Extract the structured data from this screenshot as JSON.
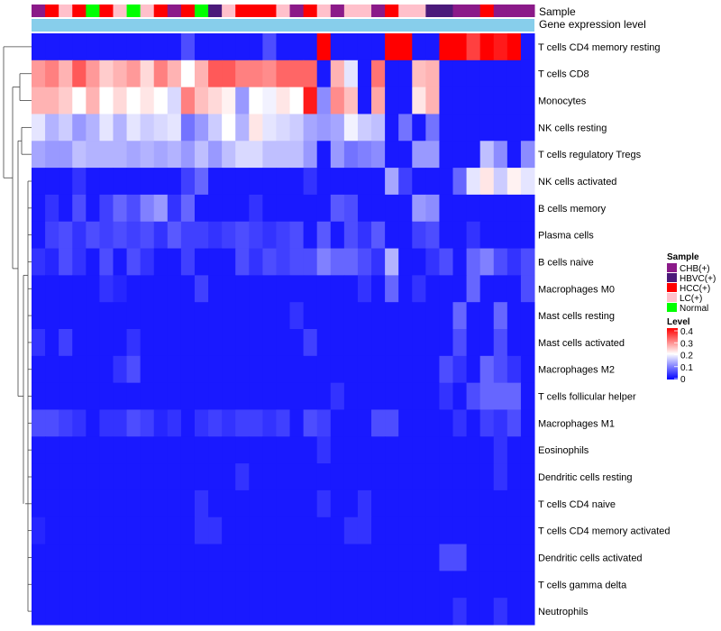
{
  "chart_data": {
    "type": "heatmap",
    "annotation_tracks": [
      "Sample",
      "Gene expression level"
    ],
    "row_labels": [
      "T cells CD4 memory resting",
      "T cells CD8",
      "Monocytes",
      "NK cells resting",
      "T cells regulatory  Tregs",
      "NK cells activated",
      "B cells memory",
      "Plasma cells",
      "B cells naive",
      "Macrophages M0",
      "Mast cells resting",
      "Mast cells activated",
      "Macrophages M2",
      "T cells follicular helper",
      "Macrophages M1",
      "Eosinophils",
      "Dendritic cells resting",
      "T cells CD4 naive",
      "T cells CD4 memory activated",
      "Dendritic cells activated",
      "T cells gamma delta",
      "Neutrophils"
    ],
    "sample_annotation": [
      "CHB(+)",
      "HCC(+)",
      "LC(+)",
      "HCC(+)",
      "Normal",
      "HCC(+)",
      "LC(+)",
      "Normal",
      "LC(+)",
      "HCC(+)",
      "CHB(+)",
      "HCC(+)",
      "Normal",
      "HBVC(+)",
      "LC(+)",
      "HCC(+)",
      "HCC(+)",
      "HCC(+)",
      "LC(+)",
      "CHB(+)",
      "HCC(+)",
      "LC(+)",
      "CHB(+)",
      "LC(+)",
      "LC(+)",
      "CHB(+)",
      "HCC(+)",
      "LC(+)",
      "LC(+)",
      "HBVC(+)",
      "HBVC(+)",
      "CHB(+)",
      "CHB(+)",
      "HCC(+)",
      "CHB(+)",
      "CHB(+)",
      "CHB(+)"
    ],
    "expression_values": [
      [
        0.02,
        0.02,
        0.02,
        0.02,
        0.02,
        0.02,
        0.02,
        0.02,
        0.02,
        0.02,
        0.02,
        0.06,
        0.02,
        0.02,
        0.02,
        0.02,
        0.02,
        0.06,
        0.02,
        0.02,
        0.02,
        0.4,
        0.02,
        0.02,
        0.02,
        0.02,
        0.4,
        0.4,
        0.02,
        0.02,
        0.4,
        0.4,
        0.35,
        0.4,
        0.38,
        0.4,
        0.02
      ],
      [
        0.28,
        0.3,
        0.26,
        0.33,
        0.28,
        0.24,
        0.26,
        0.28,
        0.23,
        0.3,
        0.26,
        0.2,
        0.26,
        0.33,
        0.33,
        0.3,
        0.3,
        0.29,
        0.32,
        0.32,
        0.32,
        0.02,
        0.26,
        0.18,
        0.02,
        0.31,
        0.02,
        0.02,
        0.25,
        0.26,
        0.02,
        0.02,
        0.02,
        0.02,
        0.02,
        0.02,
        0.02
      ],
      [
        0.26,
        0.26,
        0.24,
        0.2,
        0.26,
        0.2,
        0.23,
        0.2,
        0.22,
        0.2,
        0.17,
        0.3,
        0.25,
        0.23,
        0.21,
        0.12,
        0.2,
        0.19,
        0.22,
        0.2,
        0.38,
        0.11,
        0.29,
        0.25,
        0.02,
        0.27,
        0.02,
        0.02,
        0.22,
        0.26,
        0.02,
        0.02,
        0.02,
        0.02,
        0.02,
        0.02,
        0.02
      ],
      [
        0.18,
        0.14,
        0.16,
        0.12,
        0.14,
        0.18,
        0.14,
        0.18,
        0.16,
        0.17,
        0.18,
        0.09,
        0.12,
        0.16,
        0.2,
        0.14,
        0.22,
        0.18,
        0.17,
        0.16,
        0.13,
        0.12,
        0.13,
        0.19,
        0.16,
        0.15,
        0.02,
        0.09,
        0.02,
        0.09,
        0.02,
        0.02,
        0.02,
        0.02,
        0.02,
        0.02,
        0.02
      ],
      [
        0.13,
        0.12,
        0.12,
        0.15,
        0.14,
        0.14,
        0.14,
        0.13,
        0.14,
        0.13,
        0.14,
        0.12,
        0.15,
        0.12,
        0.15,
        0.17,
        0.17,
        0.15,
        0.15,
        0.15,
        0.12,
        0.02,
        0.12,
        0.09,
        0.1,
        0.11,
        0.02,
        0.02,
        0.12,
        0.12,
        0.02,
        0.02,
        0.02,
        0.15,
        0.11,
        0.02,
        0.11
      ],
      [
        0.02,
        0.02,
        0.02,
        0.04,
        0.02,
        0.02,
        0.02,
        0.02,
        0.02,
        0.02,
        0.02,
        0.05,
        0.08,
        0.02,
        0.02,
        0.02,
        0.02,
        0.02,
        0.02,
        0.02,
        0.04,
        0.02,
        0.02,
        0.02,
        0.02,
        0.02,
        0.13,
        0.05,
        0.02,
        0.02,
        0.02,
        0.08,
        0.18,
        0.22,
        0.16,
        0.21,
        0.18
      ],
      [
        0.02,
        0.04,
        0.02,
        0.06,
        0.02,
        0.05,
        0.08,
        0.06,
        0.1,
        0.12,
        0.04,
        0.08,
        0.02,
        0.02,
        0.02,
        0.02,
        0.04,
        0.02,
        0.02,
        0.02,
        0.02,
        0.02,
        0.07,
        0.06,
        0.02,
        0.02,
        0.02,
        0.02,
        0.12,
        0.11,
        0.02,
        0.02,
        0.02,
        0.02,
        0.02,
        0.02,
        0.02
      ],
      [
        0.02,
        0.05,
        0.06,
        0.04,
        0.06,
        0.05,
        0.06,
        0.05,
        0.06,
        0.04,
        0.07,
        0.05,
        0.05,
        0.04,
        0.05,
        0.06,
        0.05,
        0.04,
        0.05,
        0.06,
        0.02,
        0.07,
        0.02,
        0.06,
        0.04,
        0.07,
        0.02,
        0.02,
        0.05,
        0.06,
        0.02,
        0.02,
        0.04,
        0.02,
        0.02,
        0.02,
        0.02
      ],
      [
        0.04,
        0.03,
        0.06,
        0.04,
        0.02,
        0.06,
        0.02,
        0.06,
        0.04,
        0.02,
        0.02,
        0.05,
        0.02,
        0.02,
        0.02,
        0.06,
        0.04,
        0.06,
        0.05,
        0.06,
        0.06,
        0.1,
        0.08,
        0.08,
        0.06,
        0.04,
        0.14,
        0.02,
        0.02,
        0.04,
        0.06,
        0.02,
        0.08,
        0.1,
        0.06,
        0.04,
        0.06
      ],
      [
        0.02,
        0.02,
        0.02,
        0.02,
        0.02,
        0.04,
        0.03,
        0.02,
        0.02,
        0.02,
        0.02,
        0.02,
        0.05,
        0.02,
        0.02,
        0.02,
        0.02,
        0.02,
        0.02,
        0.02,
        0.02,
        0.02,
        0.02,
        0.02,
        0.04,
        0.02,
        0.08,
        0.02,
        0.04,
        0.02,
        0.02,
        0.02,
        0.08,
        0.02,
        0.02,
        0.02,
        0.06
      ],
      [
        0.02,
        0.02,
        0.02,
        0.02,
        0.02,
        0.02,
        0.02,
        0.02,
        0.02,
        0.02,
        0.02,
        0.02,
        0.02,
        0.02,
        0.02,
        0.02,
        0.02,
        0.02,
        0.02,
        0.04,
        0.02,
        0.02,
        0.02,
        0.02,
        0.02,
        0.02,
        0.02,
        0.02,
        0.02,
        0.02,
        0.02,
        0.08,
        0.02,
        0.02,
        0.08,
        0.02,
        0.02
      ],
      [
        0.04,
        0.02,
        0.05,
        0.02,
        0.02,
        0.02,
        0.02,
        0.04,
        0.02,
        0.02,
        0.02,
        0.02,
        0.02,
        0.02,
        0.02,
        0.02,
        0.02,
        0.02,
        0.02,
        0.02,
        0.05,
        0.02,
        0.02,
        0.02,
        0.02,
        0.02,
        0.02,
        0.02,
        0.02,
        0.02,
        0.02,
        0.06,
        0.02,
        0.02,
        0.06,
        0.02,
        0.02
      ],
      [
        0.02,
        0.02,
        0.02,
        0.02,
        0.02,
        0.02,
        0.04,
        0.06,
        0.02,
        0.02,
        0.02,
        0.02,
        0.02,
        0.02,
        0.02,
        0.02,
        0.02,
        0.02,
        0.02,
        0.02,
        0.02,
        0.02,
        0.02,
        0.02,
        0.02,
        0.02,
        0.02,
        0.02,
        0.02,
        0.02,
        0.06,
        0.04,
        0.02,
        0.08,
        0.06,
        0.04,
        0.02
      ],
      [
        0.02,
        0.02,
        0.02,
        0.02,
        0.02,
        0.02,
        0.02,
        0.02,
        0.02,
        0.02,
        0.02,
        0.02,
        0.02,
        0.02,
        0.02,
        0.02,
        0.02,
        0.02,
        0.02,
        0.02,
        0.02,
        0.02,
        0.04,
        0.02,
        0.02,
        0.02,
        0.02,
        0.02,
        0.02,
        0.02,
        0.04,
        0.02,
        0.06,
        0.08,
        0.08,
        0.08,
        0.02
      ],
      [
        0.06,
        0.06,
        0.05,
        0.04,
        0.02,
        0.04,
        0.04,
        0.06,
        0.05,
        0.03,
        0.04,
        0.02,
        0.04,
        0.05,
        0.04,
        0.05,
        0.05,
        0.04,
        0.05,
        0.02,
        0.06,
        0.05,
        0.02,
        0.02,
        0.02,
        0.06,
        0.06,
        0.02,
        0.02,
        0.02,
        0.02,
        0.04,
        0.02,
        0.05,
        0.04,
        0.06,
        0.02
      ],
      [
        0.02,
        0.02,
        0.02,
        0.02,
        0.02,
        0.02,
        0.02,
        0.02,
        0.02,
        0.02,
        0.02,
        0.02,
        0.02,
        0.02,
        0.02,
        0.02,
        0.02,
        0.02,
        0.02,
        0.02,
        0.02,
        0.04,
        0.02,
        0.02,
        0.02,
        0.02,
        0.02,
        0.02,
        0.02,
        0.02,
        0.02,
        0.02,
        0.02,
        0.02,
        0.04,
        0.02,
        0.02
      ],
      [
        0.02,
        0.02,
        0.02,
        0.02,
        0.02,
        0.02,
        0.02,
        0.02,
        0.02,
        0.02,
        0.02,
        0.02,
        0.02,
        0.02,
        0.02,
        0.04,
        0.02,
        0.02,
        0.02,
        0.02,
        0.02,
        0.02,
        0.02,
        0.02,
        0.02,
        0.02,
        0.02,
        0.02,
        0.02,
        0.02,
        0.02,
        0.02,
        0.02,
        0.02,
        0.04,
        0.02,
        0.02
      ],
      [
        0.02,
        0.02,
        0.02,
        0.02,
        0.02,
        0.02,
        0.02,
        0.02,
        0.02,
        0.02,
        0.02,
        0.02,
        0.04,
        0.02,
        0.02,
        0.02,
        0.02,
        0.02,
        0.02,
        0.02,
        0.02,
        0.04,
        0.02,
        0.02,
        0.04,
        0.02,
        0.02,
        0.02,
        0.02,
        0.02,
        0.02,
        0.02,
        0.02,
        0.02,
        0.02,
        0.02,
        0.02
      ],
      [
        0.03,
        0.02,
        0.02,
        0.02,
        0.02,
        0.02,
        0.02,
        0.02,
        0.02,
        0.02,
        0.02,
        0.02,
        0.04,
        0.04,
        0.02,
        0.02,
        0.02,
        0.02,
        0.02,
        0.02,
        0.02,
        0.02,
        0.02,
        0.04,
        0.04,
        0.02,
        0.02,
        0.02,
        0.02,
        0.02,
        0.02,
        0.02,
        0.02,
        0.02,
        0.02,
        0.02,
        0.02
      ],
      [
        0.02,
        0.02,
        0.02,
        0.02,
        0.02,
        0.02,
        0.02,
        0.02,
        0.02,
        0.02,
        0.02,
        0.02,
        0.02,
        0.02,
        0.02,
        0.02,
        0.02,
        0.02,
        0.02,
        0.02,
        0.02,
        0.02,
        0.02,
        0.02,
        0.02,
        0.02,
        0.02,
        0.02,
        0.02,
        0.02,
        0.06,
        0.06,
        0.02,
        0.02,
        0.02,
        0.02,
        0.02
      ],
      [
        0.02,
        0.02,
        0.02,
        0.02,
        0.02,
        0.02,
        0.02,
        0.02,
        0.02,
        0.02,
        0.02,
        0.02,
        0.02,
        0.02,
        0.02,
        0.02,
        0.02,
        0.02,
        0.02,
        0.02,
        0.02,
        0.02,
        0.02,
        0.02,
        0.02,
        0.02,
        0.02,
        0.02,
        0.02,
        0.02,
        0.02,
        0.02,
        0.02,
        0.02,
        0.02,
        0.02,
        0.02
      ],
      [
        0.02,
        0.02,
        0.02,
        0.02,
        0.02,
        0.02,
        0.02,
        0.02,
        0.02,
        0.02,
        0.02,
        0.02,
        0.02,
        0.02,
        0.02,
        0.02,
        0.02,
        0.02,
        0.02,
        0.02,
        0.02,
        0.02,
        0.02,
        0.02,
        0.02,
        0.02,
        0.02,
        0.02,
        0.02,
        0.02,
        0.02,
        0.04,
        0.02,
        0.02,
        0.04,
        0.02,
        0.02
      ]
    ],
    "legend": {
      "sample_title": "Sample",
      "sample_categories": [
        {
          "label": "CHB(+)",
          "color": "#8B1A89"
        },
        {
          "label": "HBVC(+)",
          "color": "#4B1A7A"
        },
        {
          "label": "HCC(+)",
          "color": "#FF0000"
        },
        {
          "label": "LC(+)",
          "color": "#FFC0CB"
        },
        {
          "label": "Normal",
          "color": "#00FF00"
        }
      ],
      "level_title": "Level",
      "level_ticks": [
        "0.4",
        "0.3",
        "0.2",
        "0.1",
        "0"
      ],
      "level_range": [
        0,
        0.4
      ]
    },
    "colors": {
      "low": "#0000FF",
      "mid": "#FFFFFF",
      "high": "#FF0000",
      "expression_bar": "#87CEEB"
    }
  }
}
